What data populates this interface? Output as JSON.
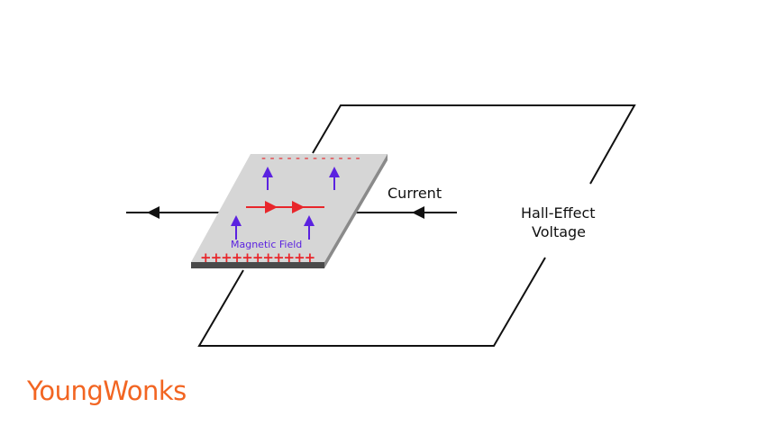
{
  "labels": {
    "current": "Current",
    "hall_line1": "Hall-Effect",
    "hall_line2": "Voltage",
    "magnetic_field": "Magnetic Field",
    "minus_charges": "- - - - - - - - - - - -",
    "plus_charges": "+++++++++++"
  },
  "brand": {
    "name": "YoungWonks",
    "color": "#f26522"
  },
  "colors": {
    "plate": "#d6d6d6",
    "plate_edge": "#4a4a4a",
    "charge": "#e8262b",
    "field": "#5b22e0",
    "wire": "#111111"
  }
}
